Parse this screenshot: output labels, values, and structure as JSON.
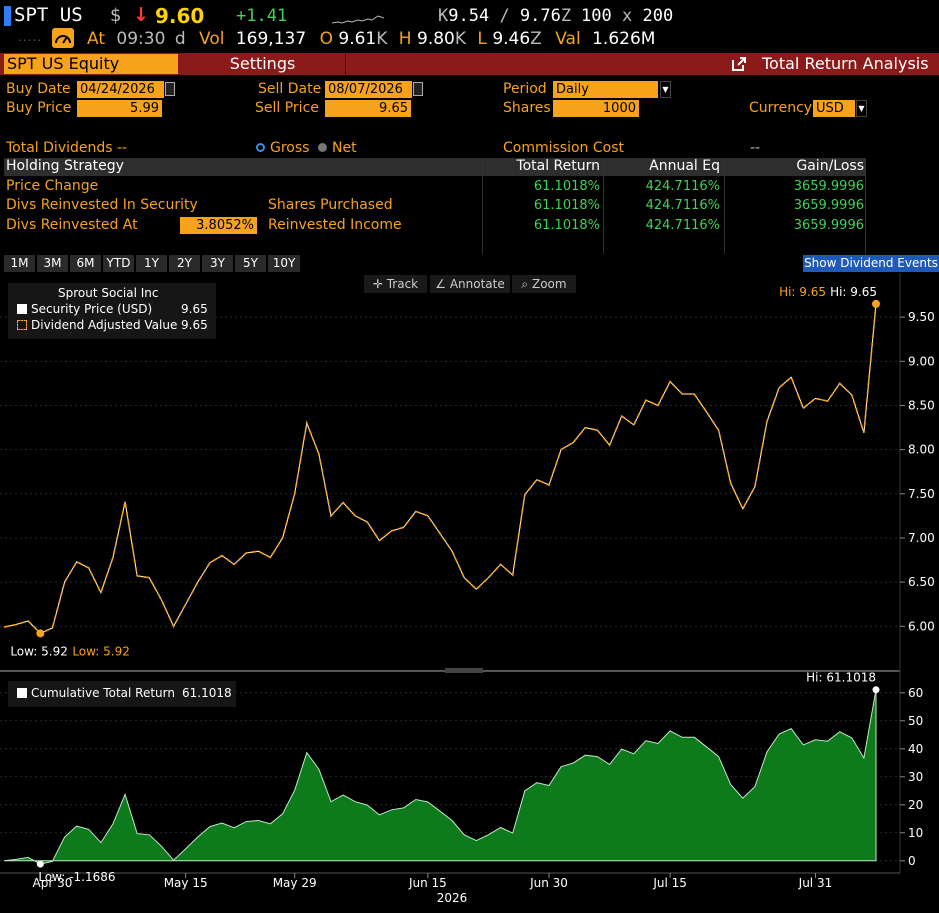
{
  "ticker_bar": {
    "ticker": "SPT US",
    "currency_symbol": "$",
    "arrow": "↓",
    "last": "9.60",
    "change": "+1.41",
    "bid_prefix": "K",
    "bid": "9.54",
    "ask": "9.76",
    "ask_suffix": "Z",
    "size": "100",
    "size_sep": "x",
    "size2": "200",
    "at_label": "At",
    "time": "09:30",
    "d_label": "d",
    "vol_label": "Vol",
    "volume": "169,137",
    "o_label": "O",
    "open": "9.61",
    "open_suffix": "K",
    "h_label": "H",
    "high": "9.80",
    "high_suffix": "K",
    "l_label": "L",
    "low": "9.46",
    "low_suffix": "Z",
    "val_label": "Val",
    "value": "1.626M"
  },
  "title_bar": {
    "security": "SPT US Equity",
    "settings": "Settings",
    "function_name": "Total Return Analysis"
  },
  "form": {
    "buy_date_label": "Buy Date",
    "buy_date": "04/24/2026",
    "sell_date_label": "Sell Date",
    "sell_date": "08/07/2026",
    "period_label": "Period",
    "period": "Daily",
    "buy_price_label": "Buy Price",
    "buy_price": "5.99",
    "sell_price_label": "Sell Price",
    "sell_price": "9.65",
    "shares_label": "Shares",
    "shares": "1000",
    "currency_label": "Currency",
    "currency": "USD",
    "total_dividends_label": "Total Dividends",
    "total_dividends": "--",
    "gross_label": "Gross",
    "net_label": "Net",
    "commission_label": "Commission Cost",
    "commission": "--"
  },
  "table": {
    "headers": [
      "Holding Strategy",
      "Total Return",
      "Annual Eq",
      "Gain/Loss"
    ],
    "rows": [
      {
        "label": "Price Change",
        "extra_label": "",
        "input": "",
        "total_return": "61.1018%",
        "annual_eq": "424.7116%",
        "gain_loss": "3659.9996"
      },
      {
        "label": "Divs Reinvested In Security",
        "extra_label": "Shares Purchased",
        "input": "",
        "total_return": "61.1018%",
        "annual_eq": "424.7116%",
        "gain_loss": "3659.9996"
      },
      {
        "label": "Divs Reinvested At",
        "extra_label": "Reinvested Income",
        "input": "3.8052%",
        "total_return": "61.1018%",
        "annual_eq": "424.7116%",
        "gain_loss": "3659.9996"
      }
    ]
  },
  "range_tabs": [
    "1M",
    "3M",
    "6M",
    "YTD",
    "1Y",
    "2Y",
    "3Y",
    "5Y",
    "10Y"
  ],
  "show_dividend_events": "Show Dividend Events",
  "chart_tools": {
    "track": "Track",
    "annotate": "Annotate",
    "zoom": "Zoom"
  },
  "colors": {
    "accent": "#f7a21b",
    "positive": "#41d156",
    "negative": "#ff3b30",
    "header_red": "#8b1a1a",
    "area_fill": "#0d7a1c"
  },
  "chart_data": [
    {
      "type": "line",
      "legend_title": "Sprout Social Inc",
      "series": [
        {
          "name": "Security Price (USD)",
          "last": "9.65",
          "color": "#ffffff"
        },
        {
          "name": "Dividend Adjusted Value",
          "last": "9.65",
          "color": "#f7a21b"
        }
      ],
      "x": [
        "2026-04-24",
        "2026-04-27",
        "2026-04-28",
        "2026-04-29",
        "2026-04-30",
        "2026-05-01",
        "2026-05-04",
        "2026-05-05",
        "2026-05-06",
        "2026-05-07",
        "2026-05-08",
        "2026-05-11",
        "2026-05-12",
        "2026-05-13",
        "2026-05-14",
        "2026-05-15",
        "2026-05-18",
        "2026-05-19",
        "2026-05-20",
        "2026-05-21",
        "2026-05-22",
        "2026-05-26",
        "2026-05-27",
        "2026-05-28",
        "2026-05-29",
        "2026-06-01",
        "2026-06-02",
        "2026-06-03",
        "2026-06-04",
        "2026-06-05",
        "2026-06-08",
        "2026-06-09",
        "2026-06-10",
        "2026-06-11",
        "2026-06-12",
        "2026-06-15",
        "2026-06-16",
        "2026-06-17",
        "2026-06-18",
        "2026-06-22",
        "2026-06-23",
        "2026-06-24",
        "2026-06-25",
        "2026-06-26",
        "2026-06-29",
        "2026-06-30",
        "2026-07-01",
        "2026-07-02",
        "2026-07-06",
        "2026-07-07",
        "2026-07-08",
        "2026-07-09",
        "2026-07-10",
        "2026-07-13",
        "2026-07-14",
        "2026-07-15",
        "2026-07-16",
        "2026-07-17",
        "2026-07-20",
        "2026-07-21",
        "2026-07-22",
        "2026-07-23",
        "2026-07-24",
        "2026-07-27",
        "2026-07-28",
        "2026-07-29",
        "2026-07-30",
        "2026-07-31",
        "2026-08-03",
        "2026-08-04",
        "2026-08-05",
        "2026-08-06",
        "2026-08-07"
      ],
      "values": [
        5.99,
        6.02,
        6.06,
        5.92,
        5.98,
        6.5,
        6.73,
        6.66,
        6.38,
        6.78,
        7.41,
        6.57,
        6.55,
        6.3,
        6.0,
        6.25,
        6.5,
        6.72,
        6.8,
        6.7,
        6.83,
        6.85,
        6.78,
        7.0,
        7.5,
        8.3,
        7.95,
        7.25,
        7.4,
        7.25,
        7.18,
        6.97,
        7.08,
        7.12,
        7.3,
        7.25,
        7.05,
        6.85,
        6.55,
        6.42,
        6.55,
        6.7,
        6.58,
        7.49,
        7.66,
        7.6,
        8.0,
        8.08,
        8.25,
        8.22,
        8.05,
        8.38,
        8.28,
        8.56,
        8.5,
        8.77,
        8.63,
        8.63,
        8.43,
        8.22,
        7.62,
        7.33,
        7.58,
        8.32,
        8.7,
        8.82,
        8.47,
        8.58,
        8.55,
        8.75,
        8.62,
        8.19,
        9.65
      ],
      "yticks": [
        "6.00",
        "6.50",
        "7.00",
        "7.50",
        "8.00",
        "8.50",
        "9.00",
        "9.50"
      ],
      "ylim": [
        5.55,
        10.0
      ],
      "hi_label": "Hi: 9.65",
      "low_label": "Low: 5.92",
      "xticks": [
        "Apr 30",
        "May 15",
        "May 29",
        "Jun 15",
        "Jun 30",
        "Jul 15",
        "Jul 31"
      ],
      "xlabel": "2026"
    },
    {
      "type": "area",
      "series": [
        {
          "name": "Cumulative Total Return",
          "last": "61.1018",
          "color": "#0d7a1c"
        }
      ],
      "values": [
        0.0,
        0.5,
        1.2,
        -1.17,
        -0.2,
        8.5,
        12.4,
        11.2,
        6.5,
        13.2,
        23.7,
        9.7,
        9.3,
        5.2,
        0.2,
        4.3,
        8.5,
        12.2,
        13.5,
        11.8,
        14.0,
        14.4,
        13.2,
        16.8,
        25.2,
        38.6,
        32.7,
        21.1,
        23.5,
        21.1,
        19.9,
        16.4,
        18.2,
        18.9,
        21.9,
        21.0,
        17.7,
        14.4,
        9.3,
        7.2,
        9.3,
        11.9,
        9.9,
        25.0,
        27.9,
        26.9,
        33.6,
        34.9,
        37.7,
        37.2,
        34.4,
        39.9,
        38.2,
        42.9,
        41.9,
        46.4,
        44.1,
        44.1,
        40.7,
        37.2,
        27.2,
        22.4,
        26.5,
        38.9,
        45.3,
        47.2,
        41.4,
        43.2,
        42.7,
        46.1,
        43.9,
        36.7,
        61.1
      ],
      "yticks": [
        "0",
        "10",
        "20",
        "30",
        "40",
        "50",
        "60"
      ],
      "ylim": [
        -4,
        66
      ],
      "hi_label": "Hi: 61.1018",
      "low_label": "Low: -1.1686"
    }
  ]
}
